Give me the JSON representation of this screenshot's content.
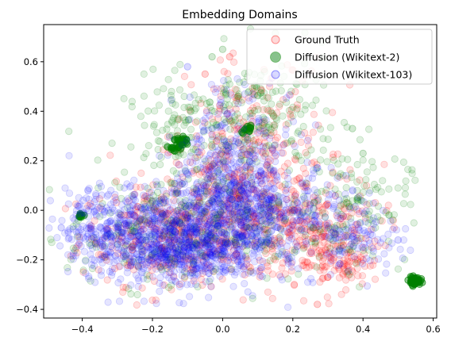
{
  "chart_data": {
    "type": "scatter",
    "title": "Embedding Domains",
    "xlabel": "",
    "ylabel": "",
    "xlim": [
      -0.51,
      0.61
    ],
    "ylim": [
      -0.435,
      0.75
    ],
    "xticks": [
      -0.4,
      -0.2,
      0.0,
      0.2,
      0.4,
      0.6
    ],
    "xtick_labels": [
      "−0.4",
      "−0.2",
      "0.0",
      "0.2",
      "0.4",
      "0.6"
    ],
    "yticks": [
      -0.4,
      -0.2,
      0.0,
      0.2,
      0.4,
      0.6
    ],
    "ytick_labels": [
      "−0.4",
      "−0.2",
      "0.0",
      "0.2",
      "0.4",
      "0.6"
    ],
    "grid": false,
    "legend_position": "upper right",
    "series": [
      {
        "name": "Ground Truth",
        "color": "#ff0000",
        "alpha": 0.12,
        "clusters": [
          {
            "cx": -0.15,
            "cy": -0.1,
            "sx": 0.13,
            "sy": 0.1,
            "n": 320
          },
          {
            "cx": 0.05,
            "cy": 0.05,
            "sx": 0.13,
            "sy": 0.17,
            "n": 320
          },
          {
            "cx": 0.25,
            "cy": -0.08,
            "sx": 0.1,
            "sy": 0.1,
            "n": 220
          },
          {
            "cx": 0.1,
            "cy": 0.35,
            "sx": 0.1,
            "sy": 0.13,
            "n": 120
          },
          {
            "cx": 0.33,
            "cy": -0.22,
            "sx": 0.06,
            "sy": 0.05,
            "n": 70
          }
        ],
        "points": [
          [
            0.27,
            -0.38
          ],
          [
            0.3,
            -0.27
          ],
          [
            0.4,
            -0.2
          ],
          [
            0.02,
            0.62
          ],
          [
            -0.05,
            0.55
          ]
        ]
      },
      {
        "name": "Diffusion (Wikitext-2)",
        "color": "#008000",
        "alpha": 0.12,
        "clusters": [
          {
            "cx": -0.1,
            "cy": 0.3,
            "sx": 0.09,
            "sy": 0.12,
            "n": 150
          },
          {
            "cx": 0.12,
            "cy": 0.38,
            "sx": 0.1,
            "sy": 0.13,
            "n": 160
          },
          {
            "cx": 0.35,
            "cy": 0.02,
            "sx": 0.09,
            "sy": 0.12,
            "n": 150
          },
          {
            "cx": -0.2,
            "cy": -0.1,
            "sx": 0.12,
            "sy": 0.1,
            "n": 180
          },
          {
            "cx": 0.05,
            "cy": -0.05,
            "sx": 0.12,
            "sy": 0.12,
            "n": 160
          }
        ],
        "dense_clusters": [
          {
            "cx": 0.547,
            "cy": -0.285,
            "r": 0.008,
            "n": 60
          },
          {
            "cx": -0.12,
            "cy": 0.28,
            "r": 0.012,
            "n": 25
          },
          {
            "cx": -0.405,
            "cy": -0.02,
            "r": 0.005,
            "n": 10
          },
          {
            "cx": 0.07,
            "cy": 0.33,
            "r": 0.008,
            "n": 12
          },
          {
            "cx": -0.14,
            "cy": 0.25,
            "r": 0.008,
            "n": 12
          }
        ],
        "points": [
          [
            0.4,
            0.23
          ],
          [
            0.37,
            0.33
          ],
          [
            0.0,
            0.65
          ],
          [
            -0.03,
            0.62
          ]
        ]
      },
      {
        "name": "Diffusion (Wikitext-103)",
        "color": "#0000ff",
        "alpha": 0.1,
        "clusters": [
          {
            "cx": -0.2,
            "cy": -0.1,
            "sx": 0.12,
            "sy": 0.09,
            "n": 650
          },
          {
            "cx": 0.03,
            "cy": 0.03,
            "sx": 0.09,
            "sy": 0.12,
            "n": 550
          },
          {
            "cx": -0.07,
            "cy": -0.18,
            "sx": 0.1,
            "sy": 0.07,
            "n": 250
          },
          {
            "cx": 0.2,
            "cy": -0.05,
            "sx": 0.1,
            "sy": 0.1,
            "n": 200
          },
          {
            "cx": 0.05,
            "cy": 0.3,
            "sx": 0.09,
            "sy": 0.12,
            "n": 120
          },
          {
            "cx": -0.35,
            "cy": -0.05,
            "sx": 0.05,
            "sy": 0.08,
            "n": 80
          },
          {
            "cx": 0.4,
            "cy": -0.1,
            "sx": 0.06,
            "sy": 0.07,
            "n": 80
          }
        ],
        "points": [
          [
            -0.46,
            -0.07
          ],
          [
            0.5,
            -0.12
          ],
          [
            -0.1,
            0.58
          ],
          [
            0.15,
            0.62
          ]
        ]
      }
    ]
  }
}
